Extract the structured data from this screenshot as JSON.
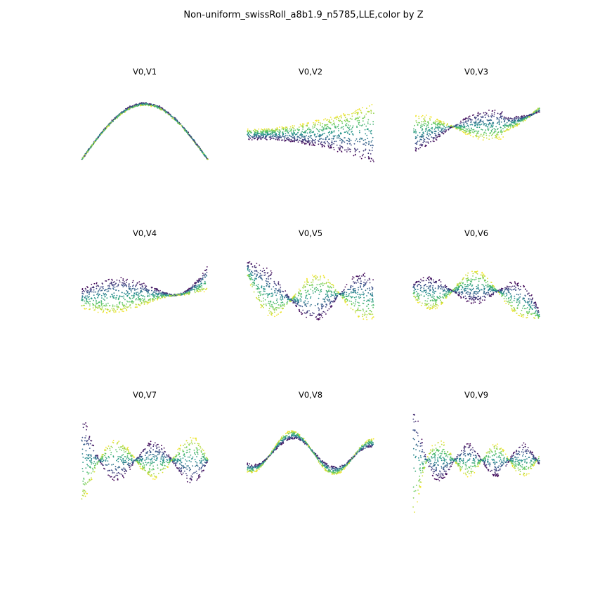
{
  "chart_data": {
    "type": "scatter",
    "title": "Non-uniform_swissRoll_a8b1.9_n5785,LLE,color by Z",
    "color_by": "Z",
    "colormap": [
      "#440154",
      "#3b528b",
      "#21918c",
      "#5ec962",
      "#fde725"
    ],
    "axes_visible": false,
    "grid": false,
    "subplots": [
      {
        "title": "V0,V1",
        "x": "V0",
        "y": "V1"
      },
      {
        "title": "V0,V2",
        "x": "V0",
        "y": "V2"
      },
      {
        "title": "V0,V3",
        "x": "V0",
        "y": "V3"
      },
      {
        "title": "V0,V4",
        "x": "V0",
        "y": "V4"
      },
      {
        "title": "V0,V5",
        "x": "V0",
        "y": "V5"
      },
      {
        "title": "V0,V6",
        "x": "V0",
        "y": "V6"
      },
      {
        "title": "V0,V7",
        "x": "V0",
        "y": "V7"
      },
      {
        "title": "V0,V8",
        "x": "V0",
        "y": "V8"
      },
      {
        "title": "V0,V9",
        "x": "V0",
        "y": "V9"
      }
    ]
  }
}
